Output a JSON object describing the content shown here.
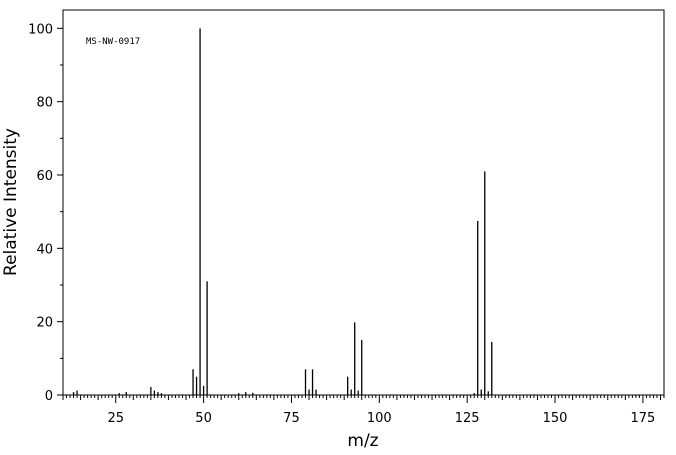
{
  "chart_data": {
    "type": "bar",
    "title": "",
    "annotation": "MS-NW-0917",
    "xlabel": "m/z",
    "ylabel": "Relative Intensity",
    "xlim": [
      10,
      181
    ],
    "ylim": [
      0,
      105
    ],
    "x_ticks": [
      25,
      50,
      75,
      100,
      125,
      150,
      175
    ],
    "y_ticks": [
      0,
      20,
      40,
      60,
      80,
      100
    ],
    "x_minor_step": 1,
    "grid": false,
    "series": [
      {
        "x": [
          13,
          14,
          26,
          28,
          35,
          36,
          37,
          38,
          47,
          48,
          49,
          50,
          51,
          60,
          62,
          64,
          79,
          80,
          81,
          82,
          91,
          92,
          93,
          94,
          95,
          127,
          128,
          129,
          130,
          131,
          132
        ],
        "y": [
          0.8,
          1.2,
          0.5,
          0.8,
          2.2,
          1.2,
          0.8,
          0.5,
          7.0,
          5.0,
          100.0,
          2.5,
          31.0,
          0.5,
          0.8,
          0.6,
          7.0,
          1.5,
          7.0,
          1.5,
          5.0,
          1.5,
          19.8,
          1.2,
          15.0,
          0.5,
          47.5,
          1.5,
          61.0,
          1.0,
          14.5
        ]
      }
    ]
  }
}
